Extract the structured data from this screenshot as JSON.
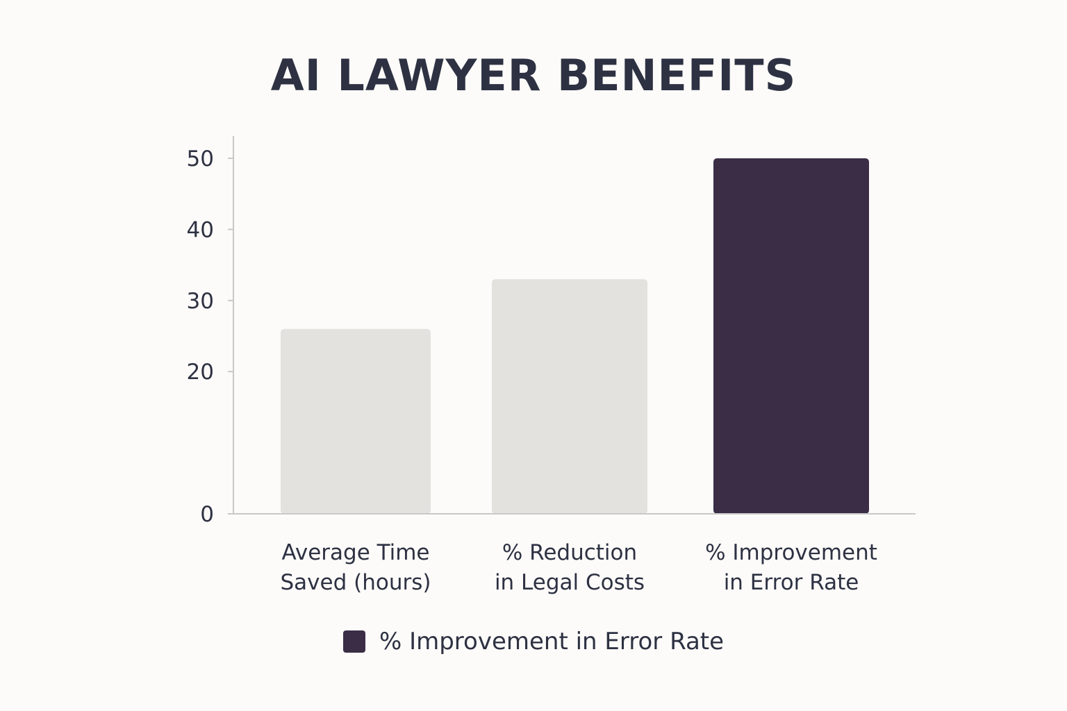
{
  "colors": {
    "highlight_bar": "#3b2d45",
    "muted_bar": "#e3e2de",
    "axis": "#c8c8c8",
    "text": "#2d3142"
  },
  "chart_data": {
    "type": "bar",
    "title": "AI LAWYER BENEFITS",
    "categories": [
      [
        "Average Time",
        "Saved (hours)"
      ],
      [
        "% Reduction",
        "in Legal Costs"
      ],
      [
        "% Improvement",
        "in Error Rate"
      ]
    ],
    "values": [
      26,
      33,
      50
    ],
    "highlighted": [
      false,
      false,
      true
    ],
    "yticks": [
      0,
      20,
      30,
      40,
      50
    ],
    "ylim": [
      0,
      50
    ],
    "grid": false,
    "legend": {
      "position": "bottom",
      "entries": [
        {
          "label": "% Improvement in Error Rate",
          "color": "#3b2d45"
        }
      ]
    }
  }
}
